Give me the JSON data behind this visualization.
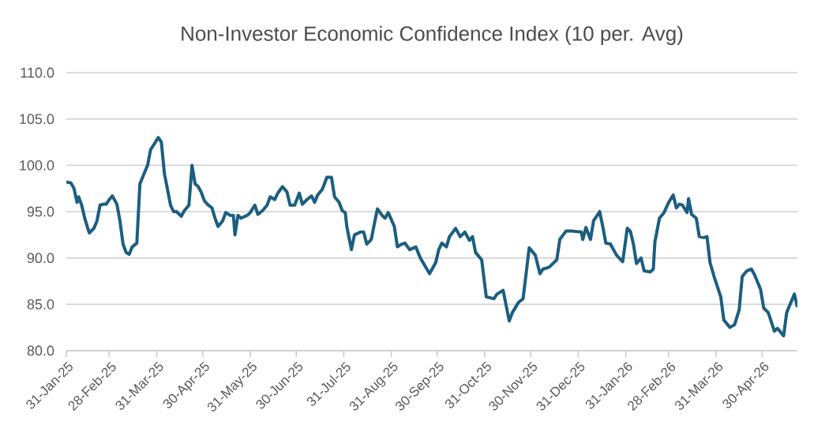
{
  "chart_data": {
    "type": "line",
    "title": "Non-Investor Economic Confidence Index (10 per. Avg)",
    "x": [
      "2025-01-31",
      "2025-02-03",
      "2025-02-05",
      "2025-02-07",
      "2025-02-08",
      "2025-02-10",
      "2025-02-12",
      "2025-02-14",
      "2025-02-15",
      "2025-02-18",
      "2025-02-20",
      "2025-02-22",
      "2025-02-24",
      "2025-02-26",
      "2025-02-28",
      "2025-03-02",
      "2025-03-05",
      "2025-03-07",
      "2025-03-09",
      "2025-03-11",
      "2025-03-13",
      "2025-03-15",
      "2025-03-18",
      "2025-03-20",
      "2025-03-25",
      "2025-03-27",
      "2025-03-29",
      "2025-04-01",
      "2025-04-03",
      "2025-04-05",
      "2025-04-07",
      "2025-04-09",
      "2025-04-11",
      "2025-04-13",
      "2025-04-16",
      "2025-04-18",
      "2025-04-21",
      "2025-04-23",
      "2025-04-25",
      "2025-04-27",
      "2025-04-29",
      "2025-05-01",
      "2025-05-03",
      "2025-05-06",
      "2025-05-08",
      "2025-05-10",
      "2025-05-13",
      "2025-05-15",
      "2025-05-18",
      "2025-05-20",
      "2025-05-21",
      "2025-05-23",
      "2025-05-25",
      "2025-05-29",
      "2025-05-31",
      "2025-06-03",
      "2025-06-05",
      "2025-06-08",
      "2025-06-11",
      "2025-06-13",
      "2025-06-16",
      "2025-06-18",
      "2025-06-21",
      "2025-06-24",
      "2025-06-26",
      "2025-06-29",
      "2025-07-02",
      "2025-07-04",
      "2025-07-07",
      "2025-07-10",
      "2025-07-12",
      "2025-07-14",
      "2025-07-17",
      "2025-07-20",
      "2025-07-23",
      "2025-07-25",
      "2025-07-28",
      "2025-07-30",
      "2025-08-01",
      "2025-08-02",
      "2025-08-05",
      "2025-08-07",
      "2025-08-11",
      "2025-08-13",
      "2025-08-15",
      "2025-08-18",
      "2025-08-20",
      "2025-08-22",
      "2025-08-25",
      "2025-08-27",
      "2025-08-29",
      "2025-09-02",
      "2025-09-04",
      "2025-09-07",
      "2025-09-09",
      "2025-09-12",
      "2025-09-16",
      "2025-09-19",
      "2025-09-25",
      "2025-09-27",
      "2025-09-29",
      "2025-10-01",
      "2025-10-03",
      "2025-10-06",
      "2025-10-08",
      "2025-10-12",
      "2025-10-15",
      "2025-10-18",
      "2025-10-21",
      "2025-10-23",
      "2025-10-25",
      "2025-10-29",
      "2025-11-01",
      "2025-11-06",
      "2025-11-08",
      "2025-11-12",
      "2025-11-16",
      "2025-11-18",
      "2025-11-22",
      "2025-11-25",
      "2025-11-27",
      "2025-11-29",
      "2025-12-03",
      "2025-12-06",
      "2025-12-08",
      "2025-12-12",
      "2025-12-17",
      "2025-12-19",
      "2025-12-23",
      "2025-12-27",
      "2026-01-02",
      "2026-01-03",
      "2026-01-05",
      "2026-01-08",
      "2026-01-10",
      "2026-01-14",
      "2026-01-16",
      "2026-01-18",
      "2026-01-21",
      "2026-01-25",
      "2026-01-29",
      "2026-02-01",
      "2026-02-03",
      "2026-02-05",
      "2026-02-07",
      "2026-02-10",
      "2026-02-12",
      "2026-02-16",
      "2026-02-18",
      "2026-02-19",
      "2026-02-22",
      "2026-02-25",
      "2026-02-28",
      "2026-03-03",
      "2026-03-05",
      "2026-03-07",
      "2026-03-09",
      "2026-03-12",
      "2026-03-13",
      "2026-03-15",
      "2026-03-18",
      "2026-03-20",
      "2026-03-23",
      "2026-03-25",
      "2026-03-27",
      "2026-03-30",
      "2026-04-03",
      "2026-04-05",
      "2026-04-09",
      "2026-04-12",
      "2026-04-15",
      "2026-04-17",
      "2026-04-20",
      "2026-04-23",
      "2026-04-25",
      "2026-04-29",
      "2026-05-01",
      "2026-05-04",
      "2026-05-08",
      "2026-05-10",
      "2026-05-14",
      "2026-05-16",
      "2026-05-21",
      "2026-05-23"
    ],
    "series": [
      {
        "color": "#1b5e80",
        "values": [
          98.2,
          98.1,
          97.5,
          96.0,
          96.6,
          95.7,
          94.3,
          93.2,
          92.7,
          93.2,
          94.0,
          95.7,
          95.8,
          95.8,
          96.3,
          96.7,
          95.8,
          94.0,
          91.5,
          90.6,
          90.4,
          91.2,
          91.6,
          98.0,
          100.0,
          101.7,
          102.2,
          103.0,
          102.5,
          99.1,
          97.4,
          95.7,
          95.0,
          95.0,
          94.5,
          95.1,
          95.7,
          100.0,
          98.0,
          97.7,
          97.1,
          96.2,
          95.8,
          95.4,
          94.3,
          93.4,
          94.0,
          94.9,
          94.6,
          94.6,
          92.5,
          94.6,
          94.3,
          94.6,
          94.9,
          95.7,
          94.7,
          95.1,
          95.7,
          96.6,
          96.3,
          97.0,
          97.7,
          97.1,
          95.7,
          95.7,
          97.0,
          95.8,
          96.3,
          96.7,
          96.0,
          96.8,
          97.4,
          98.7,
          98.7,
          96.6,
          96.0,
          95.1,
          94.9,
          93.4,
          90.9,
          92.5,
          92.8,
          92.8,
          91.5,
          92.0,
          93.7,
          95.3,
          94.6,
          94.3,
          94.9,
          93.4,
          91.2,
          91.5,
          91.6,
          90.9,
          91.2,
          90.0,
          88.3,
          88.9,
          89.5,
          90.9,
          91.6,
          91.2,
          92.3,
          93.2,
          92.3,
          92.8,
          91.9,
          92.3,
          90.6,
          89.8,
          85.8,
          85.6,
          86.1,
          86.5,
          83.2,
          84.1,
          85.2,
          85.6,
          88.3,
          91.1,
          90.3,
          88.3,
          88.8,
          89.0,
          89.8,
          92.0,
          92.9,
          92.9,
          92.8,
          92.0,
          93.3,
          92.0,
          94.0,
          95.0,
          93.4,
          91.6,
          91.5,
          90.3,
          89.6,
          93.2,
          92.9,
          91.5,
          89.4,
          90.0,
          88.6,
          88.5,
          88.8,
          91.7,
          94.3,
          94.9,
          96.0,
          96.8,
          95.4,
          95.8,
          95.7,
          94.9,
          96.4,
          94.7,
          94.3,
          92.3,
          92.2,
          92.3,
          89.5,
          87.8,
          85.8,
          83.3,
          82.5,
          82.8,
          84.4,
          88.0,
          88.6,
          88.8,
          88.2,
          86.6,
          84.6,
          84.1,
          82.1,
          82.4,
          81.6,
          84.1,
          86.1,
          84.7
        ]
      }
    ],
    "xlim": [
      "2025-01-31",
      "2026-05-23"
    ],
    "xticks": [
      {
        "value": "2025-01-31",
        "label": "31-Jan-25"
      },
      {
        "value": "2025-02-28",
        "label": "28-Feb-25"
      },
      {
        "value": "2025-03-31",
        "label": "31-Mar-25"
      },
      {
        "value": "2025-04-30",
        "label": "30-Apr-25"
      },
      {
        "value": "2025-05-31",
        "label": "31-May-25"
      },
      {
        "value": "2025-06-30",
        "label": "30-Jun-25"
      },
      {
        "value": "2025-07-31",
        "label": "31-Jul-25"
      },
      {
        "value": "2025-08-31",
        "label": "31-Aug-25"
      },
      {
        "value": "2025-09-30",
        "label": "30-Sep-25"
      },
      {
        "value": "2025-10-31",
        "label": "31-Oct-25"
      },
      {
        "value": "2025-11-30",
        "label": "30-Nov-25"
      },
      {
        "value": "2025-12-31",
        "label": "31-Dec-25"
      },
      {
        "value": "2026-01-31",
        "label": "31-Jan-26"
      },
      {
        "value": "2026-02-28",
        "label": "28-Feb-26"
      },
      {
        "value": "2026-03-31",
        "label": "31-Mar-26"
      },
      {
        "value": "2026-04-30",
        "label": "30-Apr-26"
      }
    ],
    "ylim": [
      80,
      110
    ],
    "yticks": [
      {
        "value": 80,
        "label": "80.0"
      },
      {
        "value": 85,
        "label": "85.0"
      },
      {
        "value": 90,
        "label": "90.0"
      },
      {
        "value": 95,
        "label": "95.0"
      },
      {
        "value": 100,
        "label": "100.0"
      },
      {
        "value": 105,
        "label": "105.0"
      },
      {
        "value": 110,
        "label": "110.0"
      }
    ],
    "grid": "y",
    "marker": "none",
    "line_style": "solid"
  }
}
